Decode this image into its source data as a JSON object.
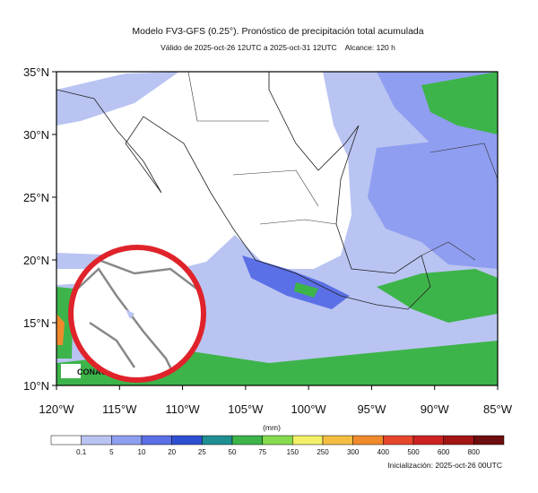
{
  "header": {
    "title": "Modelo FV3-GFS (0.25°). Pronóstico de precipitación total acumulada",
    "subtitle": "Válido de 2025-oct-26 12UTC a 2025-oct-31 12UTC    Alcance: 120 h"
  },
  "map": {
    "lat_labels": [
      "35°N",
      "30°N",
      "25°N",
      "20°N",
      "15°N",
      "10°N"
    ],
    "lon_labels": [
      "120°W",
      "115°W",
      "110°W",
      "105°W",
      "100°W",
      "95°W",
      "90°W",
      "85°W"
    ],
    "logo": "CONAG"
  },
  "legend": {
    "unit": "(mm)",
    "labels": [
      "0.1",
      "5",
      "10",
      "20",
      "25",
      "50",
      "75",
      "150",
      "250",
      "300",
      "400",
      "500",
      "600",
      "800"
    ],
    "colors": [
      "#ffffff",
      "#b9c4f2",
      "#8f9ef0",
      "#5b6fe6",
      "#2f4fd2",
      "#1f8f92",
      "#3db44a",
      "#86dc4e",
      "#f2f067",
      "#f5be42",
      "#f08a2c",
      "#e6472b",
      "#cc2222",
      "#a31515",
      "#6e0e0e"
    ]
  },
  "footer": {
    "initialization": "Inicialización: 2025-oct-26 00UTC"
  }
}
